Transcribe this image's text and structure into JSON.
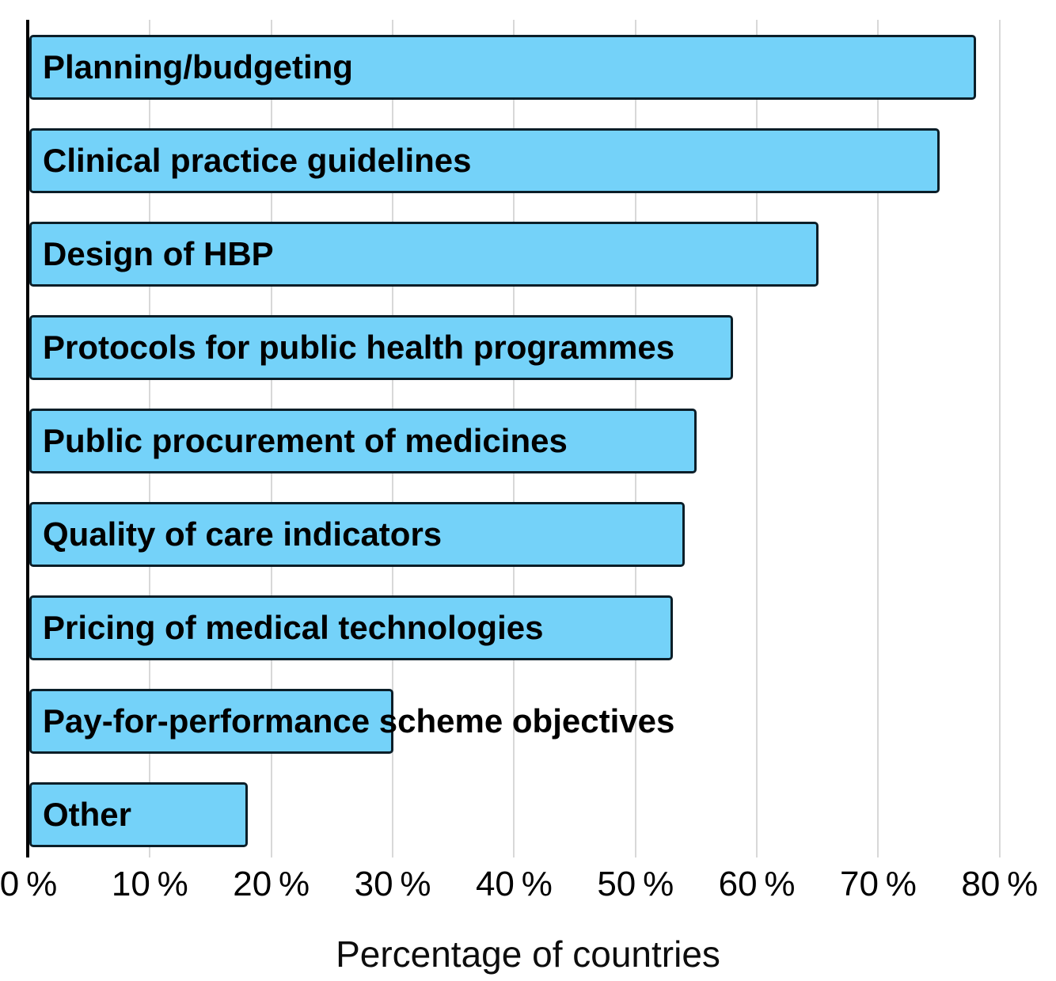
{
  "chart_data": {
    "type": "bar",
    "orientation": "horizontal",
    "title": "",
    "xlabel": "Percentage of countries",
    "ylabel": "",
    "categories": [
      "Planning/budgeting",
      "Clinical practice guidelines",
      "Design of HBP",
      "Protocols for public health programmes",
      "Public procurement of medicines",
      "Quality of care indicators",
      "Pricing of medical technologies",
      "Pay-for-performance scheme objectives",
      "Other"
    ],
    "values": [
      78,
      75,
      65,
      58,
      55,
      54,
      53,
      30,
      18
    ],
    "xlim": [
      0,
      80
    ],
    "x_tick_values": [
      0,
      10,
      20,
      30,
      40,
      50,
      60,
      70,
      80
    ],
    "x_tick_labels": [
      "0 %",
      "10 %",
      "20 %",
      "30 %",
      "40 %",
      "50 %",
      "60 %",
      "70 %",
      "80 %"
    ],
    "grid": "vertical-gridlines-on",
    "legend": "none",
    "value_labels": "none",
    "category_label_position": "inside-bar-left",
    "colors": {
      "bar_fill": "#74d2f9",
      "bar_border": "#0b1e28",
      "gridline": "#d8d8d8",
      "axis_line": "#000000",
      "text": "#000000"
    }
  }
}
